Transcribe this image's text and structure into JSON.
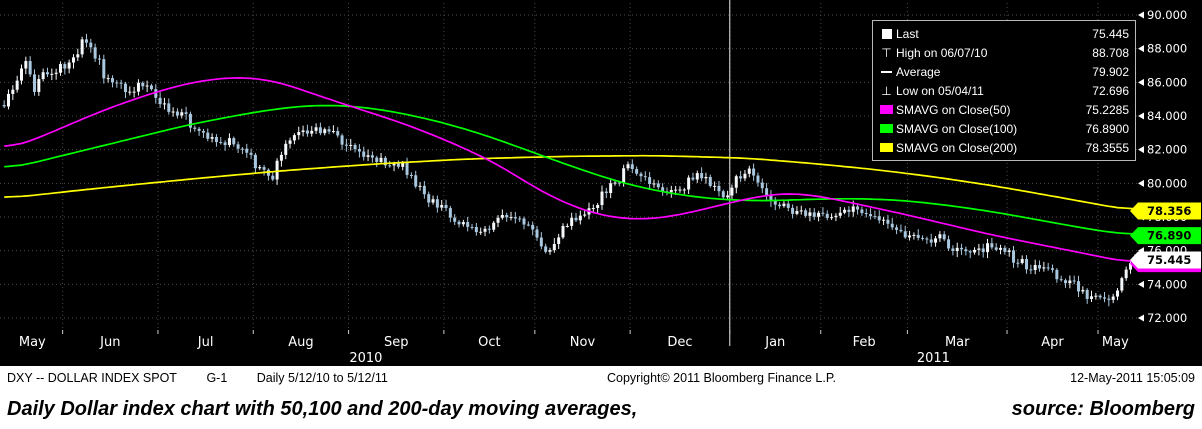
{
  "colors": {
    "background": "#000000",
    "grid": "#4a4a4a",
    "axis_text": "#ffffff",
    "candle_up": "#f5f9fc",
    "candle_down": "#a9c7de",
    "ma50": "#ff00ff",
    "ma100": "#00ff00",
    "ma200": "#ffff00",
    "year_divider": "#e8e8e8",
    "info_bar_bg": "#ffffff",
    "info_bar_text": "#000000"
  },
  "legend": {
    "rows": [
      {
        "marker": "square",
        "color": "#ffffff",
        "label": "Last",
        "value": "75.445"
      },
      {
        "marker": "high",
        "color": "#ffffff",
        "label": "High on 06/07/10",
        "value": "88.708"
      },
      {
        "marker": "dash",
        "color": "#ffffff",
        "label": "Average",
        "value": "79.902"
      },
      {
        "marker": "low",
        "color": "#ffffff",
        "label": "Low on 05/04/11",
        "value": "72.696"
      },
      {
        "marker": "swatch",
        "color": "#ff00ff",
        "label": "SMAVG on Close(50)",
        "value": "75.2285"
      },
      {
        "marker": "swatch",
        "color": "#00ff00",
        "label": "SMAVG on Close(100)",
        "value": "76.8900"
      },
      {
        "marker": "swatch",
        "color": "#ffff00",
        "label": "SMAVG on Close(200)",
        "value": "78.3555"
      }
    ]
  },
  "y_axis": {
    "ticks": [
      {
        "label": "90.000",
        "value": 90
      },
      {
        "label": "88.000",
        "value": 88
      },
      {
        "label": "86.000",
        "value": 86
      },
      {
        "label": "84.000",
        "value": 84
      },
      {
        "label": "82.000",
        "value": 82
      },
      {
        "label": "80.000",
        "value": 80
      },
      {
        "label": "78.000",
        "value": 78
      },
      {
        "label": "76.000",
        "value": 76
      },
      {
        "label": "74.000",
        "value": 74
      },
      {
        "label": "72.000",
        "value": 72
      }
    ]
  },
  "x_axis": {
    "month_labels": [
      "May",
      "Jun",
      "Jul",
      "Aug",
      "Sep",
      "Oct",
      "Nov",
      "Dec",
      "Jan",
      "Feb",
      "Mar",
      "Apr",
      "May"
    ],
    "year_labels": [
      "2010",
      "2011"
    ]
  },
  "price_tags": [
    {
      "value": "75.228",
      "price": 75.2285,
      "color": "#ff00ff"
    },
    {
      "value": "78.356",
      "price": 78.356,
      "color": "#ffff00"
    },
    {
      "value": "76.890",
      "price": 76.89,
      "color": "#00ff00"
    },
    {
      "value": "75.445",
      "price": 75.445,
      "color": "#ffffff"
    }
  ],
  "info_bar": {
    "ticker": "DXY -- DOLLAR INDEX SPOT",
    "screen": "G-1",
    "range": "Daily  5/12/10 to 5/12/11",
    "copyright": "Copyright© 2011 Bloomberg Finance L.P.",
    "timestamp": "12-May-2011 15:05:09"
  },
  "caption": {
    "text": "Daily Dollar index chart with 50,100 and 200-day moving averages,",
    "source": "source: Bloomberg"
  },
  "chart_data": {
    "type": "candlestick",
    "title": "DXY -- DOLLAR INDEX SPOT",
    "period": "Daily 5/12/10 to 5/12/11",
    "ylim": [
      71.6,
      90.4
    ],
    "y_ticks": [
      90,
      88,
      86,
      84,
      82,
      80,
      78,
      76,
      74,
      72
    ],
    "x_months": [
      "May",
      "Jun",
      "Jul",
      "Aug",
      "Sep",
      "Oct",
      "Nov",
      "Dec",
      "Jan",
      "Feb",
      "Mar",
      "Apr",
      "May"
    ],
    "month_boundaries_days": [
      20,
      50,
      81,
      112,
      142,
      173,
      203,
      234,
      265,
      293,
      324,
      354
    ],
    "total_days": 365,
    "year_divider_day": 234,
    "grid": true,
    "legend_position": "top-right",
    "stats": {
      "last": 75.445,
      "high_date": "06/07/10",
      "high": 88.708,
      "average": 79.902,
      "low_date": "05/04/11",
      "low": 72.696
    },
    "price_keypoints": [
      [
        0,
        84.8
      ],
      [
        4,
        85.9
      ],
      [
        7,
        87.2
      ],
      [
        9,
        85.5
      ],
      [
        13,
        86.4
      ],
      [
        16,
        86.5
      ],
      [
        20,
        87.0
      ],
      [
        26,
        88.4
      ],
      [
        29,
        87.6
      ],
      [
        33,
        86.3
      ],
      [
        40,
        85.6
      ],
      [
        47,
        85.9
      ],
      [
        51,
        84.6
      ],
      [
        58,
        84.0
      ],
      [
        65,
        82.6
      ],
      [
        72,
        82.5
      ],
      [
        79,
        81.6
      ],
      [
        86,
        80.4
      ],
      [
        93,
        82.8
      ],
      [
        100,
        83.2
      ],
      [
        107,
        83.0
      ],
      [
        112,
        82.2
      ],
      [
        121,
        81.3
      ],
      [
        128,
        81.1
      ],
      [
        135,
        79.6
      ],
      [
        142,
        78.3
      ],
      [
        149,
        77.4
      ],
      [
        156,
        77.0
      ],
      [
        161,
        78.1
      ],
      [
        168,
        77.6
      ],
      [
        176,
        75.95
      ],
      [
        184,
        78.0
      ],
      [
        191,
        78.6
      ],
      [
        195,
        79.6
      ],
      [
        202,
        81.0
      ],
      [
        209,
        80.0
      ],
      [
        216,
        79.4
      ],
      [
        224,
        80.6
      ],
      [
        233,
        79.1
      ],
      [
        240,
        81.0
      ],
      [
        247,
        79.2
      ],
      [
        254,
        78.3
      ],
      [
        261,
        78.2
      ],
      [
        268,
        78.0
      ],
      [
        275,
        78.6
      ],
      [
        282,
        77.8
      ],
      [
        289,
        77.4
      ],
      [
        296,
        76.5
      ],
      [
        303,
        76.8
      ],
      [
        310,
        75.8
      ],
      [
        317,
        76.2
      ],
      [
        324,
        75.9
      ],
      [
        331,
        75.0
      ],
      [
        338,
        74.85
      ],
      [
        344,
        74.2
      ],
      [
        352,
        73.1
      ],
      [
        357,
        72.95
      ],
      [
        361,
        74.3
      ],
      [
        365,
        75.445
      ]
    ],
    "series": [
      {
        "name": "SMAVG on Close(50)",
        "color": "#ff00ff",
        "last": 75.2285,
        "points": [
          [
            0,
            81.9
          ],
          [
            15,
            83.0
          ],
          [
            30,
            84.2
          ],
          [
            45,
            85.2
          ],
          [
            60,
            86.0
          ],
          [
            75,
            86.35
          ],
          [
            88,
            86.1
          ],
          [
            100,
            85.3
          ],
          [
            115,
            84.4
          ],
          [
            130,
            83.5
          ],
          [
            145,
            82.4
          ],
          [
            160,
            81.1
          ],
          [
            170,
            79.9
          ],
          [
            180,
            78.9
          ],
          [
            192,
            78.1
          ],
          [
            202,
            77.85
          ],
          [
            212,
            77.9
          ],
          [
            225,
            78.4
          ],
          [
            240,
            79.1
          ],
          [
            252,
            79.45
          ],
          [
            262,
            79.3
          ],
          [
            275,
            78.8
          ],
          [
            290,
            78.2
          ],
          [
            305,
            77.55
          ],
          [
            320,
            76.9
          ],
          [
            335,
            76.35
          ],
          [
            350,
            75.8
          ],
          [
            365,
            75.2285
          ]
        ]
      },
      {
        "name": "SMAVG on Close(100)",
        "color": "#00ff00",
        "last": 76.89,
        "points": [
          [
            0,
            80.8
          ],
          [
            20,
            81.7
          ],
          [
            40,
            82.6
          ],
          [
            60,
            83.5
          ],
          [
            80,
            84.2
          ],
          [
            95,
            84.6
          ],
          [
            110,
            84.65
          ],
          [
            125,
            84.3
          ],
          [
            140,
            83.7
          ],
          [
            155,
            82.9
          ],
          [
            170,
            81.9
          ],
          [
            185,
            80.9
          ],
          [
            200,
            80.0
          ],
          [
            215,
            79.4
          ],
          [
            230,
            79.05
          ],
          [
            245,
            78.95
          ],
          [
            260,
            79.05
          ],
          [
            275,
            79.1
          ],
          [
            290,
            79.0
          ],
          [
            305,
            78.7
          ],
          [
            320,
            78.3
          ],
          [
            335,
            77.8
          ],
          [
            350,
            77.3
          ],
          [
            365,
            76.89
          ]
        ]
      },
      {
        "name": "SMAVG on Close(200)",
        "color": "#ffff00",
        "last": 78.3555,
        "points": [
          [
            0,
            79.1
          ],
          [
            30,
            79.7
          ],
          [
            60,
            80.25
          ],
          [
            90,
            80.75
          ],
          [
            120,
            81.15
          ],
          [
            150,
            81.45
          ],
          [
            180,
            81.6
          ],
          [
            210,
            81.65
          ],
          [
            240,
            81.5
          ],
          [
            260,
            81.2
          ],
          [
            280,
            80.85
          ],
          [
            300,
            80.4
          ],
          [
            320,
            79.85
          ],
          [
            340,
            79.2
          ],
          [
            355,
            78.7
          ],
          [
            365,
            78.3555
          ]
        ]
      }
    ]
  }
}
